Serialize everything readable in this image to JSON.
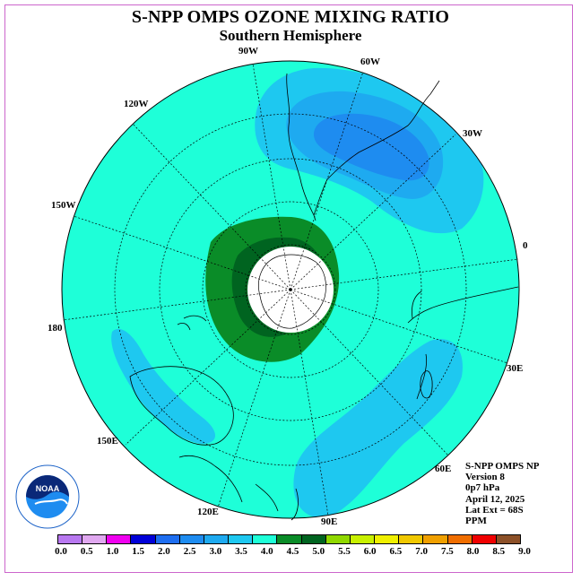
{
  "title": "S-NPP OMPS OZONE MIXING RATIO",
  "subtitle": "Southern Hemisphere",
  "longitude_labels": [
    {
      "id": "90w",
      "text": "90W"
    },
    {
      "id": "60w",
      "text": "60W"
    },
    {
      "id": "30w",
      "text": "30W"
    },
    {
      "id": "120w",
      "text": "120W"
    },
    {
      "id": "150w",
      "text": "150W"
    },
    {
      "id": "0",
      "text": "0"
    },
    {
      "id": "180",
      "text": "180"
    },
    {
      "id": "30e",
      "text": "30E"
    },
    {
      "id": "150e",
      "text": "150E"
    },
    {
      "id": "60e",
      "text": "60E"
    },
    {
      "id": "120e",
      "text": "120E"
    },
    {
      "id": "90e",
      "text": "90E"
    }
  ],
  "info": {
    "instrument": "S-NPP OMPS NP",
    "version": "Version 8",
    "pressure": "0p7 hPa",
    "date": "April 12, 2025",
    "lat_ext": "Lat Ext = 68S",
    "units": "PPM"
  },
  "colorbar": {
    "colors": [
      "#b878f0",
      "#e0a8f0",
      "#f000f0",
      "#0000d8",
      "#1e6ef0",
      "#1e8cf0",
      "#1eaaf0",
      "#1ec8f0",
      "#1effd8",
      "#0a8c28",
      "#006420",
      "#90d800",
      "#c8f000",
      "#f0f000",
      "#f0c800",
      "#f0a000",
      "#f06e00",
      "#f00000",
      "#8c5028"
    ],
    "ticks": [
      "0.0",
      "0.5",
      "1.0",
      "1.5",
      "2.0",
      "2.5",
      "3.0",
      "3.5",
      "4.0",
      "4.5",
      "5.0",
      "5.5",
      "6.0",
      "6.5",
      "7.0",
      "7.5",
      "8.0",
      "8.5",
      "9.0"
    ]
  },
  "logo": {
    "text": "NOAA"
  }
}
